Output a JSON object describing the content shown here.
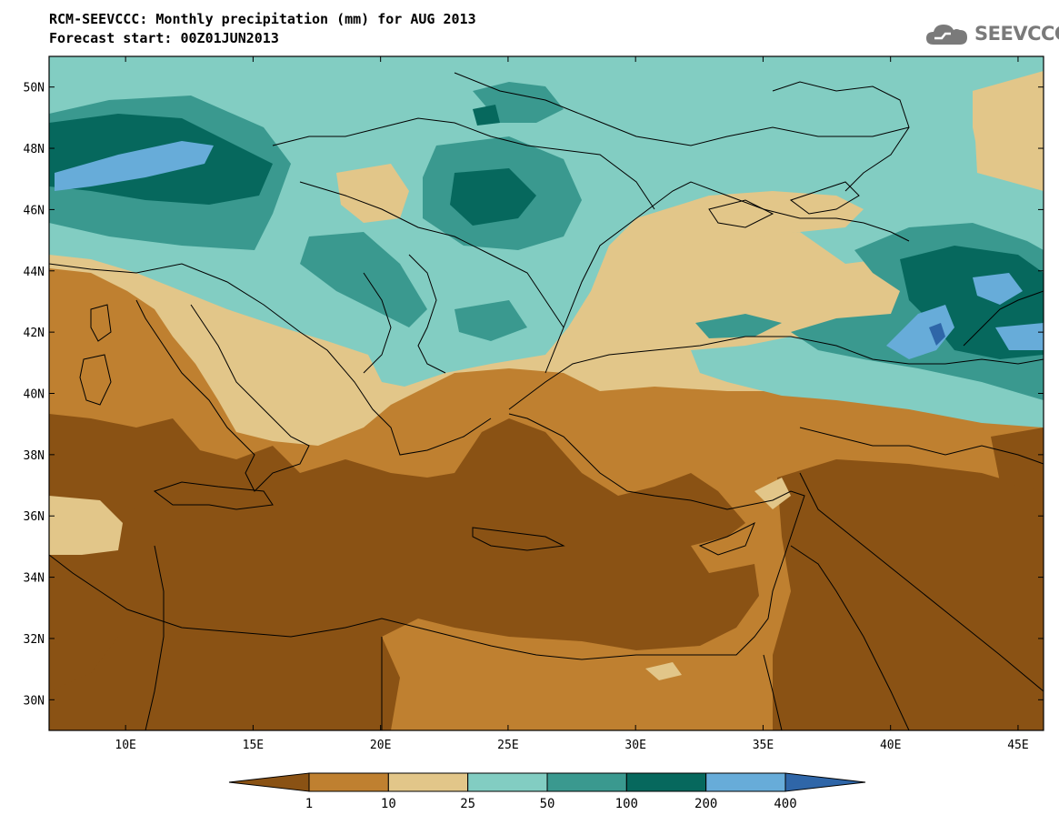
{
  "header": {
    "title": "RCM-SEEVCCC: Monthly precipitation (mm) for AUG 2013",
    "subtitle": "Forecast start: 00Z01JUN2013"
  },
  "logo": {
    "text": "SEEVCCC",
    "icon": "cloud-icon"
  },
  "map": {
    "lat_labels": [
      "50N",
      "48N",
      "46N",
      "44N",
      "42N",
      "40N",
      "38N",
      "36N",
      "34N",
      "32N",
      "30N"
    ],
    "lon_labels": [
      "10E",
      "15E",
      "20E",
      "25E",
      "30E",
      "35E",
      "40E",
      "45E"
    ],
    "lon_range": [
      7,
      46
    ],
    "lat_range": [
      29,
      51
    ]
  },
  "legend": {
    "labels": [
      "1",
      "10",
      "25",
      "50",
      "100",
      "200",
      "400"
    ],
    "colors": [
      "#8a5214",
      "#bf8030",
      "#e2c689",
      "#82cdc2",
      "#3a998f",
      "#06685d",
      "#67acd9",
      "#2f66a8"
    ]
  }
}
